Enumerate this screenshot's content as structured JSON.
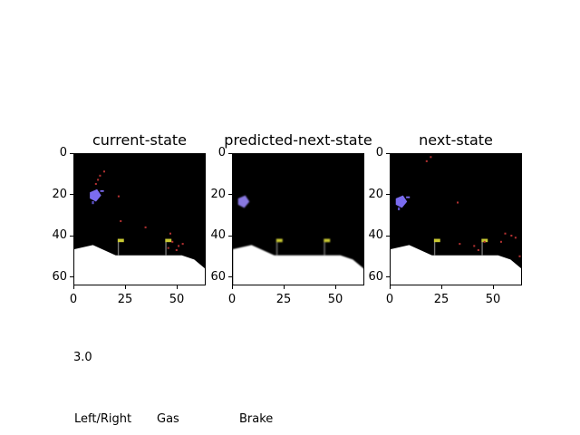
{
  "panels": [
    {
      "title": "current-state",
      "blur": false,
      "agent": {
        "x": 10,
        "y": 20,
        "color": "#7b6cf0"
      },
      "dots": [
        [
          14,
          8
        ],
        [
          12,
          10
        ],
        [
          11,
          12
        ],
        [
          10,
          14
        ],
        [
          21,
          20
        ],
        [
          22,
          32
        ],
        [
          34,
          35
        ],
        [
          46,
          38
        ],
        [
          47,
          42
        ],
        [
          50,
          44
        ],
        [
          49,
          46
        ],
        [
          52,
          43
        ],
        [
          45,
          45
        ]
      ]
    },
    {
      "title": "predicted-next-state",
      "blur": true,
      "agent": {
        "x": 5,
        "y": 23,
        "color": "#8878e0"
      },
      "dots": []
    },
    {
      "title": "next-state",
      "blur": false,
      "agent": {
        "x": 5,
        "y": 23,
        "color": "#7b6cf0"
      },
      "dots": [
        [
          19,
          1
        ],
        [
          17,
          3
        ],
        [
          32,
          23
        ],
        [
          33,
          43
        ],
        [
          40,
          44
        ],
        [
          42,
          46
        ],
        [
          45,
          42
        ],
        [
          55,
          38
        ],
        [
          58,
          39
        ],
        [
          60,
          40
        ],
        [
          62,
          49
        ],
        [
          53,
          42
        ]
      ]
    }
  ],
  "axis": {
    "xticks": [
      0,
      25,
      50
    ],
    "yticks": [
      0,
      20,
      40,
      60
    ],
    "range": [
      0,
      64
    ]
  },
  "scene": {
    "ground_color": "#ffffff",
    "sky_color": "#000000",
    "flag_color": "#c8c832",
    "flags": [
      21,
      44
    ],
    "ground_profile": [
      [
        0,
        46
      ],
      [
        9,
        44
      ],
      [
        20,
        49
      ],
      [
        52,
        49
      ],
      [
        58,
        51
      ],
      [
        64,
        56
      ]
    ]
  },
  "action_value": "3.0",
  "controls": {
    "left_right": "Left/Right",
    "gas": "Gas",
    "brake": "Brake"
  }
}
